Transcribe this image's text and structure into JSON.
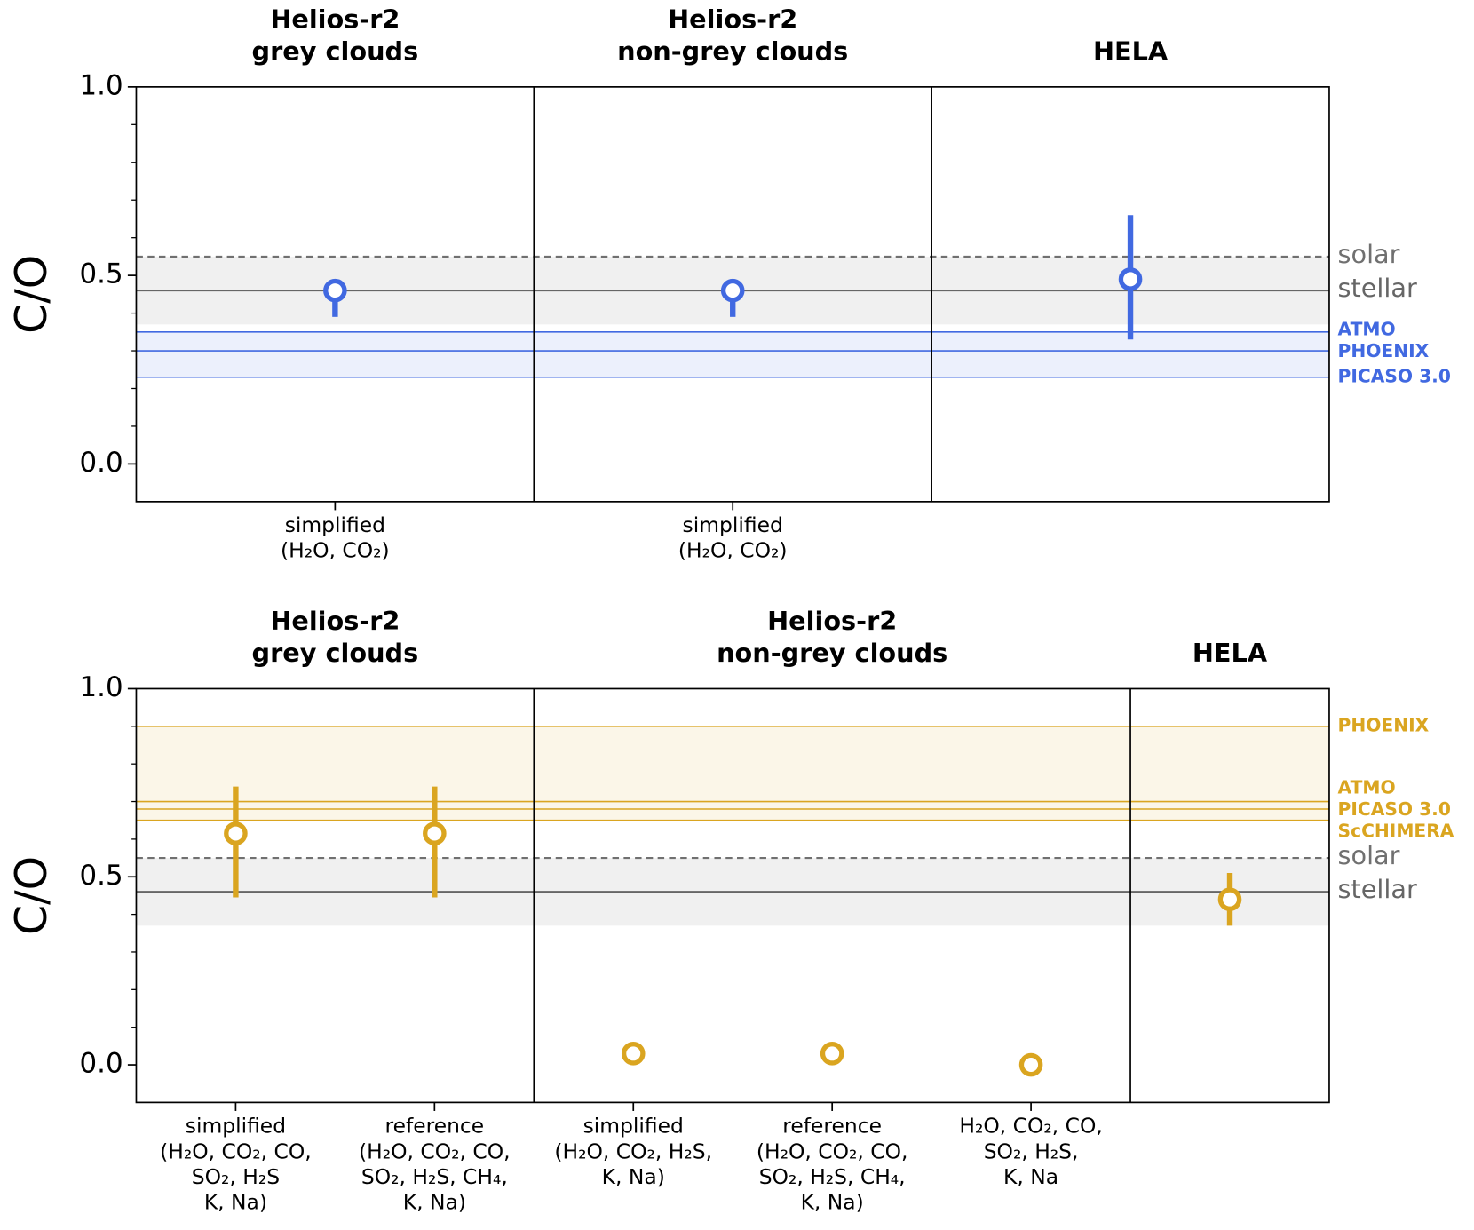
{
  "chart_data": [
    {
      "type": "errorbar",
      "ylabel": "C/O",
      "ylim": [
        -0.1,
        1.0
      ],
      "yticks": [
        {
          "value": 0,
          "label": "0.0"
        },
        0.5,
        {
          "value": 1,
          "label": "1.0"
        }
      ],
      "minor_yticks": [
        0.1,
        0.2,
        0.3,
        0.4,
        0.6,
        0.7,
        0.8,
        0.9
      ],
      "stellar_band": [
        0.37,
        0.55
      ],
      "reference_lines": [
        {
          "name": "solar",
          "value": 0.55,
          "color": "#707070",
          "dashed": true
        },
        {
          "name": "stellar",
          "value": 0.46,
          "color": "#666666",
          "dashed": false
        }
      ],
      "models": {
        "color": "#4169e1",
        "lines": [
          {
            "name": "ATMO",
            "value": 0.35
          },
          {
            "name": "PHOENIX",
            "value": 0.3
          },
          {
            "name": "PICASO 3.0",
            "value": 0.23
          }
        ]
      },
      "color": "#4169e1",
      "panels": [
        {
          "title": [
            "Helios-r2",
            "grey clouds"
          ],
          "categories": [
            [
              "simplified",
              "(H₂O, CO₂)"
            ]
          ],
          "values": [
            0.46
          ],
          "lower": [
            0.39
          ],
          "upper": [
            0.46
          ]
        },
        {
          "title": [
            "Helios-r2",
            "non-grey clouds"
          ],
          "categories": [
            [
              "simplified",
              "(H₂O, CO₂)"
            ]
          ],
          "values": [
            0.46
          ],
          "lower": [
            0.39
          ],
          "upper": [
            0.46
          ]
        },
        {
          "title": [
            "HELA"
          ],
          "categories": [
            null
          ],
          "values": [
            0.49
          ],
          "lower": [
            0.33
          ],
          "upper": [
            0.66
          ]
        }
      ]
    },
    {
      "type": "errorbar",
      "ylabel": "C/O",
      "ylim": [
        -0.1,
        1.0
      ],
      "yticks": [
        {
          "value": 0,
          "label": "0.0"
        },
        0.5,
        {
          "value": 1,
          "label": "1.0"
        }
      ],
      "minor_yticks": [
        0.1,
        0.2,
        0.3,
        0.4,
        0.6,
        0.7,
        0.8,
        0.9
      ],
      "stellar_band": [
        0.37,
        0.55
      ],
      "reference_lines": [
        {
          "name": "solar",
          "value": 0.55,
          "color": "#707070",
          "dashed": true
        },
        {
          "name": "stellar",
          "value": 0.46,
          "color": "#666666",
          "dashed": false
        }
      ],
      "models": {
        "color": "#daa520",
        "lines": [
          {
            "name": "PHOENIX",
            "value": 0.9
          },
          {
            "name": "ATMO",
            "value": 0.7
          },
          {
            "name": "PICASO 3.0",
            "value": 0.68
          },
          {
            "name": "ScCHIMERA",
            "value": 0.65
          }
        ]
      },
      "color": "#daa520",
      "panels": [
        {
          "title": [
            "Helios-r2",
            "grey clouds"
          ],
          "categories": [
            [
              "simplified",
              "(H₂O, CO₂, CO,",
              "SO₂, H₂S",
              "K, Na)"
            ],
            [
              "reference",
              "(H₂O, CO₂, CO,",
              "SO₂, H₂S, CH₄,",
              "K, Na)"
            ]
          ],
          "values": [
            0.615,
            0.615
          ],
          "lower": [
            0.445,
            0.445
          ],
          "upper": [
            0.74,
            0.74
          ]
        },
        {
          "title": [
            "Helios-r2",
            "non-grey clouds"
          ],
          "categories": [
            [
              "simplified",
              "(H₂O, CO₂, H₂S,",
              "K, Na)"
            ],
            [
              "reference",
              "(H₂O, CO₂, CO,",
              "SO₂, H₂S, CH₄,",
              "K, Na)"
            ],
            [
              "H₂O, CO₂, CO,",
              "SO₂, H₂S,",
              "K, Na"
            ]
          ],
          "values": [
            0.03,
            0.03,
            0.0
          ],
          "lower": [
            null,
            null,
            null
          ],
          "upper": [
            null,
            null,
            null
          ]
        },
        {
          "title": [
            "HELA"
          ],
          "categories": [
            null
          ],
          "values": [
            0.44
          ],
          "lower": [
            0.37
          ],
          "upper": [
            0.51
          ]
        }
      ]
    }
  ]
}
